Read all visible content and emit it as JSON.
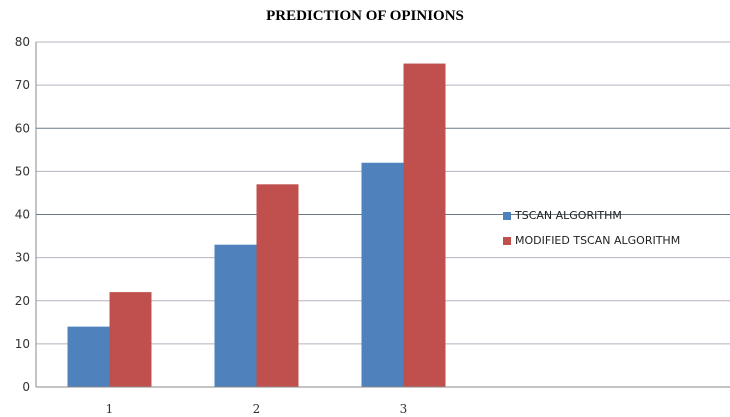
{
  "chart_data": {
    "type": "bar",
    "title": "PREDICTION OF OPINIONS",
    "categories": [
      "1",
      "2",
      "3"
    ],
    "series": [
      {
        "name": "TSCAN ALGORITHM",
        "values": [
          14,
          33,
          52
        ],
        "color": "#4f81bd"
      },
      {
        "name": "MODIFIED TSCAN ALGORITHM",
        "values": [
          22,
          47,
          75
        ],
        "color": "#c0504d"
      }
    ],
    "yticks": [
      "0",
      "10",
      "20",
      "30",
      "40",
      "50",
      "60",
      "70",
      "80"
    ],
    "ylim": [
      0,
      80
    ],
    "xlabel": "",
    "ylabel": "",
    "grid": true,
    "legend": "right"
  }
}
